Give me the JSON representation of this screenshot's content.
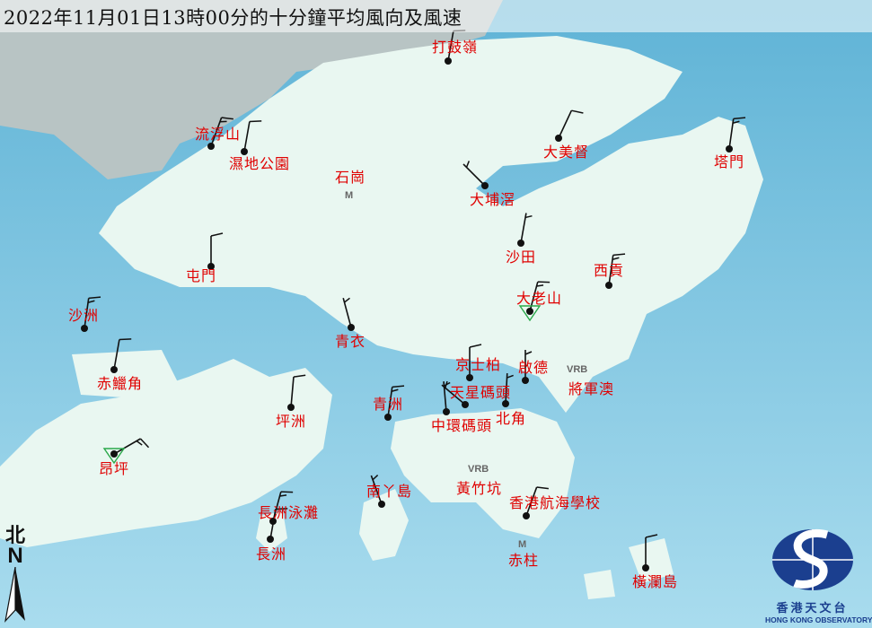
{
  "title": "2022年11月01日13時00分的十分鐘平均風向及風速",
  "legend": {
    "north_char": "北",
    "north_letter": "N"
  },
  "logo": {
    "name_zh": "香港天文台",
    "name_en": "HONG KONG OBSERVATORY"
  },
  "wind_units": "knots",
  "stations": [
    {
      "name": "打鼓嶺",
      "type": "station",
      "dir_deg": 10,
      "speed": 10
    },
    {
      "name": "流浮山",
      "type": "station",
      "dir_deg": 20,
      "speed": 15
    },
    {
      "name": "濕地公園",
      "type": "station",
      "dir_deg": 10,
      "speed": 10
    },
    {
      "name": "大美督",
      "type": "station",
      "dir_deg": 25,
      "speed": 10
    },
    {
      "name": "塔門",
      "type": "station",
      "dir_deg": 8,
      "speed": 15
    },
    {
      "name": "石崗",
      "type": "marker",
      "marker": "M"
    },
    {
      "name": "大埔滘",
      "type": "station",
      "dir_deg": 315,
      "speed": 5
    },
    {
      "name": "沙田",
      "type": "station",
      "dir_deg": 10,
      "speed": 5
    },
    {
      "name": "屯門",
      "type": "station",
      "dir_deg": 0,
      "speed": 10
    },
    {
      "name": "西貢",
      "type": "station",
      "dir_deg": 8,
      "speed": 15
    },
    {
      "name": "大老山",
      "type": "triangle",
      "dir_deg": 15,
      "speed": 15
    },
    {
      "name": "沙洲",
      "type": "station",
      "dir_deg": 8,
      "speed": 15
    },
    {
      "name": "青衣",
      "type": "station",
      "dir_deg": 345,
      "speed": 5
    },
    {
      "name": "赤鱲角",
      "type": "station",
      "dir_deg": 10,
      "speed": 10
    },
    {
      "name": "京士柏",
      "type": "station",
      "dir_deg": 0,
      "speed": 10
    },
    {
      "name": "啟德",
      "type": "station",
      "dir_deg": 0,
      "speed": 5
    },
    {
      "name": "將軍澳",
      "type": "marker",
      "marker": "VRB"
    },
    {
      "name": "天星碼頭",
      "type": "station",
      "dir_deg": 310,
      "speed": 5
    },
    {
      "name": "北角",
      "type": "station",
      "dir_deg": 3,
      "speed": 5
    },
    {
      "name": "中環碼頭",
      "type": "station",
      "dir_deg": 355,
      "speed": 5
    },
    {
      "name": "青洲",
      "type": "station",
      "dir_deg": 8,
      "speed": 15
    },
    {
      "name": "坪洲",
      "type": "station",
      "dir_deg": 5,
      "speed": 10
    },
    {
      "name": "昂坪",
      "type": "triangle",
      "dir_deg": 60,
      "speed": 15
    },
    {
      "name": "黃竹坑",
      "type": "marker",
      "marker": "VRB"
    },
    {
      "name": "南丫島",
      "type": "station",
      "dir_deg": 340,
      "speed": 5
    },
    {
      "name": "香港航海學校",
      "type": "station",
      "dir_deg": 20,
      "speed": 10
    },
    {
      "name": "長洲泳灘",
      "type": "station",
      "dir_deg": 15,
      "speed": 15
    },
    {
      "name": "長洲",
      "type": "station",
      "dir_deg": 10,
      "speed": 10
    },
    {
      "name": "赤柱",
      "type": "marker",
      "marker": "M"
    },
    {
      "name": "橫瀾島",
      "type": "station",
      "dir_deg": 0,
      "speed": 10
    }
  ]
}
